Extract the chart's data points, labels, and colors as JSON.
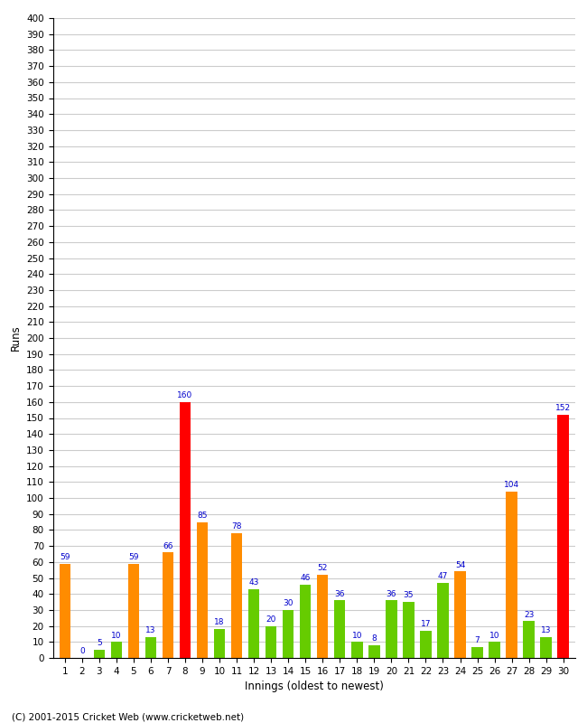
{
  "innings": [
    1,
    2,
    3,
    4,
    5,
    6,
    7,
    8,
    9,
    10,
    11,
    12,
    13,
    14,
    15,
    16,
    17,
    18,
    19,
    20,
    21,
    22,
    23,
    24,
    25,
    26,
    27,
    28,
    29,
    30
  ],
  "values": [
    59,
    0,
    5,
    10,
    59,
    13,
    66,
    160,
    85,
    18,
    78,
    43,
    20,
    30,
    46,
    52,
    36,
    10,
    8,
    36,
    35,
    17,
    47,
    54,
    7,
    10,
    104,
    23,
    13,
    152
  ],
  "colors": [
    "#ff8c00",
    "#ff8c00",
    "#66cc00",
    "#66cc00",
    "#ff8c00",
    "#66cc00",
    "#ff8c00",
    "#ff0000",
    "#ff8c00",
    "#66cc00",
    "#ff8c00",
    "#66cc00",
    "#66cc00",
    "#66cc00",
    "#66cc00",
    "#ff8c00",
    "#66cc00",
    "#66cc00",
    "#66cc00",
    "#66cc00",
    "#66cc00",
    "#66cc00",
    "#66cc00",
    "#ff8c00",
    "#66cc00",
    "#66cc00",
    "#ff8c00",
    "#66cc00",
    "#66cc00",
    "#ff0000"
  ],
  "xlabel": "Innings (oldest to newest)",
  "ylabel": "Runs",
  "ylim": [
    0,
    400
  ],
  "yticks": [
    0,
    10,
    20,
    30,
    40,
    50,
    60,
    70,
    80,
    90,
    100,
    110,
    120,
    130,
    140,
    150,
    160,
    170,
    180,
    190,
    200,
    210,
    220,
    230,
    240,
    250,
    260,
    270,
    280,
    290,
    300,
    310,
    320,
    330,
    340,
    350,
    360,
    370,
    380,
    390,
    400
  ],
  "footer": "(C) 2001-2015 Cricket Web (www.cricketweb.net)",
  "label_color": "#0000cc",
  "bg_color": "#ffffff",
  "grid_color": "#cccccc",
  "bar_width": 0.65
}
